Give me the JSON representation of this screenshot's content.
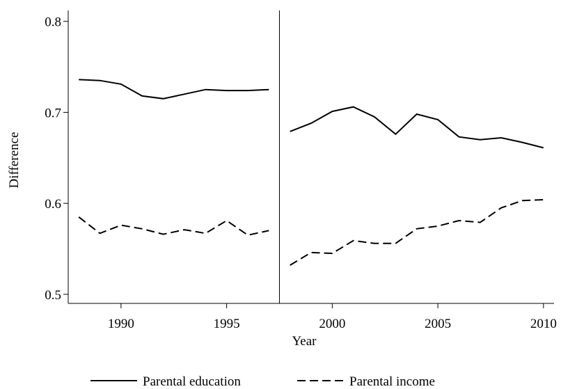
{
  "chart_data": {
    "type": "line",
    "x_label": "Year",
    "y_label": "Difference",
    "x": [
      1988,
      1989,
      1990,
      1991,
      1992,
      1993,
      1994,
      1995,
      1996,
      1997,
      1997.5,
      1998,
      1999,
      2000,
      2001,
      2002,
      2003,
      2004,
      2005,
      2006,
      2007,
      2008,
      2009,
      2010
    ],
    "series": [
      {
        "name": "Parental education",
        "color": "#000000",
        "dash": "solid",
        "values": [
          0.736,
          0.735,
          0.731,
          0.718,
          0.715,
          0.72,
          0.725,
          0.724,
          0.724,
          0.725,
          null,
          0.679,
          0.688,
          0.701,
          0.706,
          0.695,
          0.676,
          0.698,
          0.692,
          0.673,
          0.67,
          0.672,
          0.667,
          0.661
        ]
      },
      {
        "name": "Parental income",
        "color": "#000000",
        "dash": "dashed",
        "values": [
          0.585,
          0.567,
          0.576,
          0.572,
          0.566,
          0.571,
          0.567,
          0.581,
          0.565,
          0.57,
          null,
          0.532,
          0.546,
          0.545,
          0.559,
          0.556,
          0.556,
          0.572,
          0.575,
          0.581,
          0.579,
          0.595,
          0.603,
          0.604
        ]
      }
    ],
    "vline": 1997.5,
    "xlim": [
      1987.5,
      2010.5
    ],
    "xticks": [
      1990,
      1995,
      2000,
      2005,
      2010
    ],
    "ylim": [
      0.49,
      0.812
    ],
    "yticks": [
      0.5,
      0.6,
      0.7,
      0.8
    ],
    "grid": false,
    "legend": "bottom"
  }
}
